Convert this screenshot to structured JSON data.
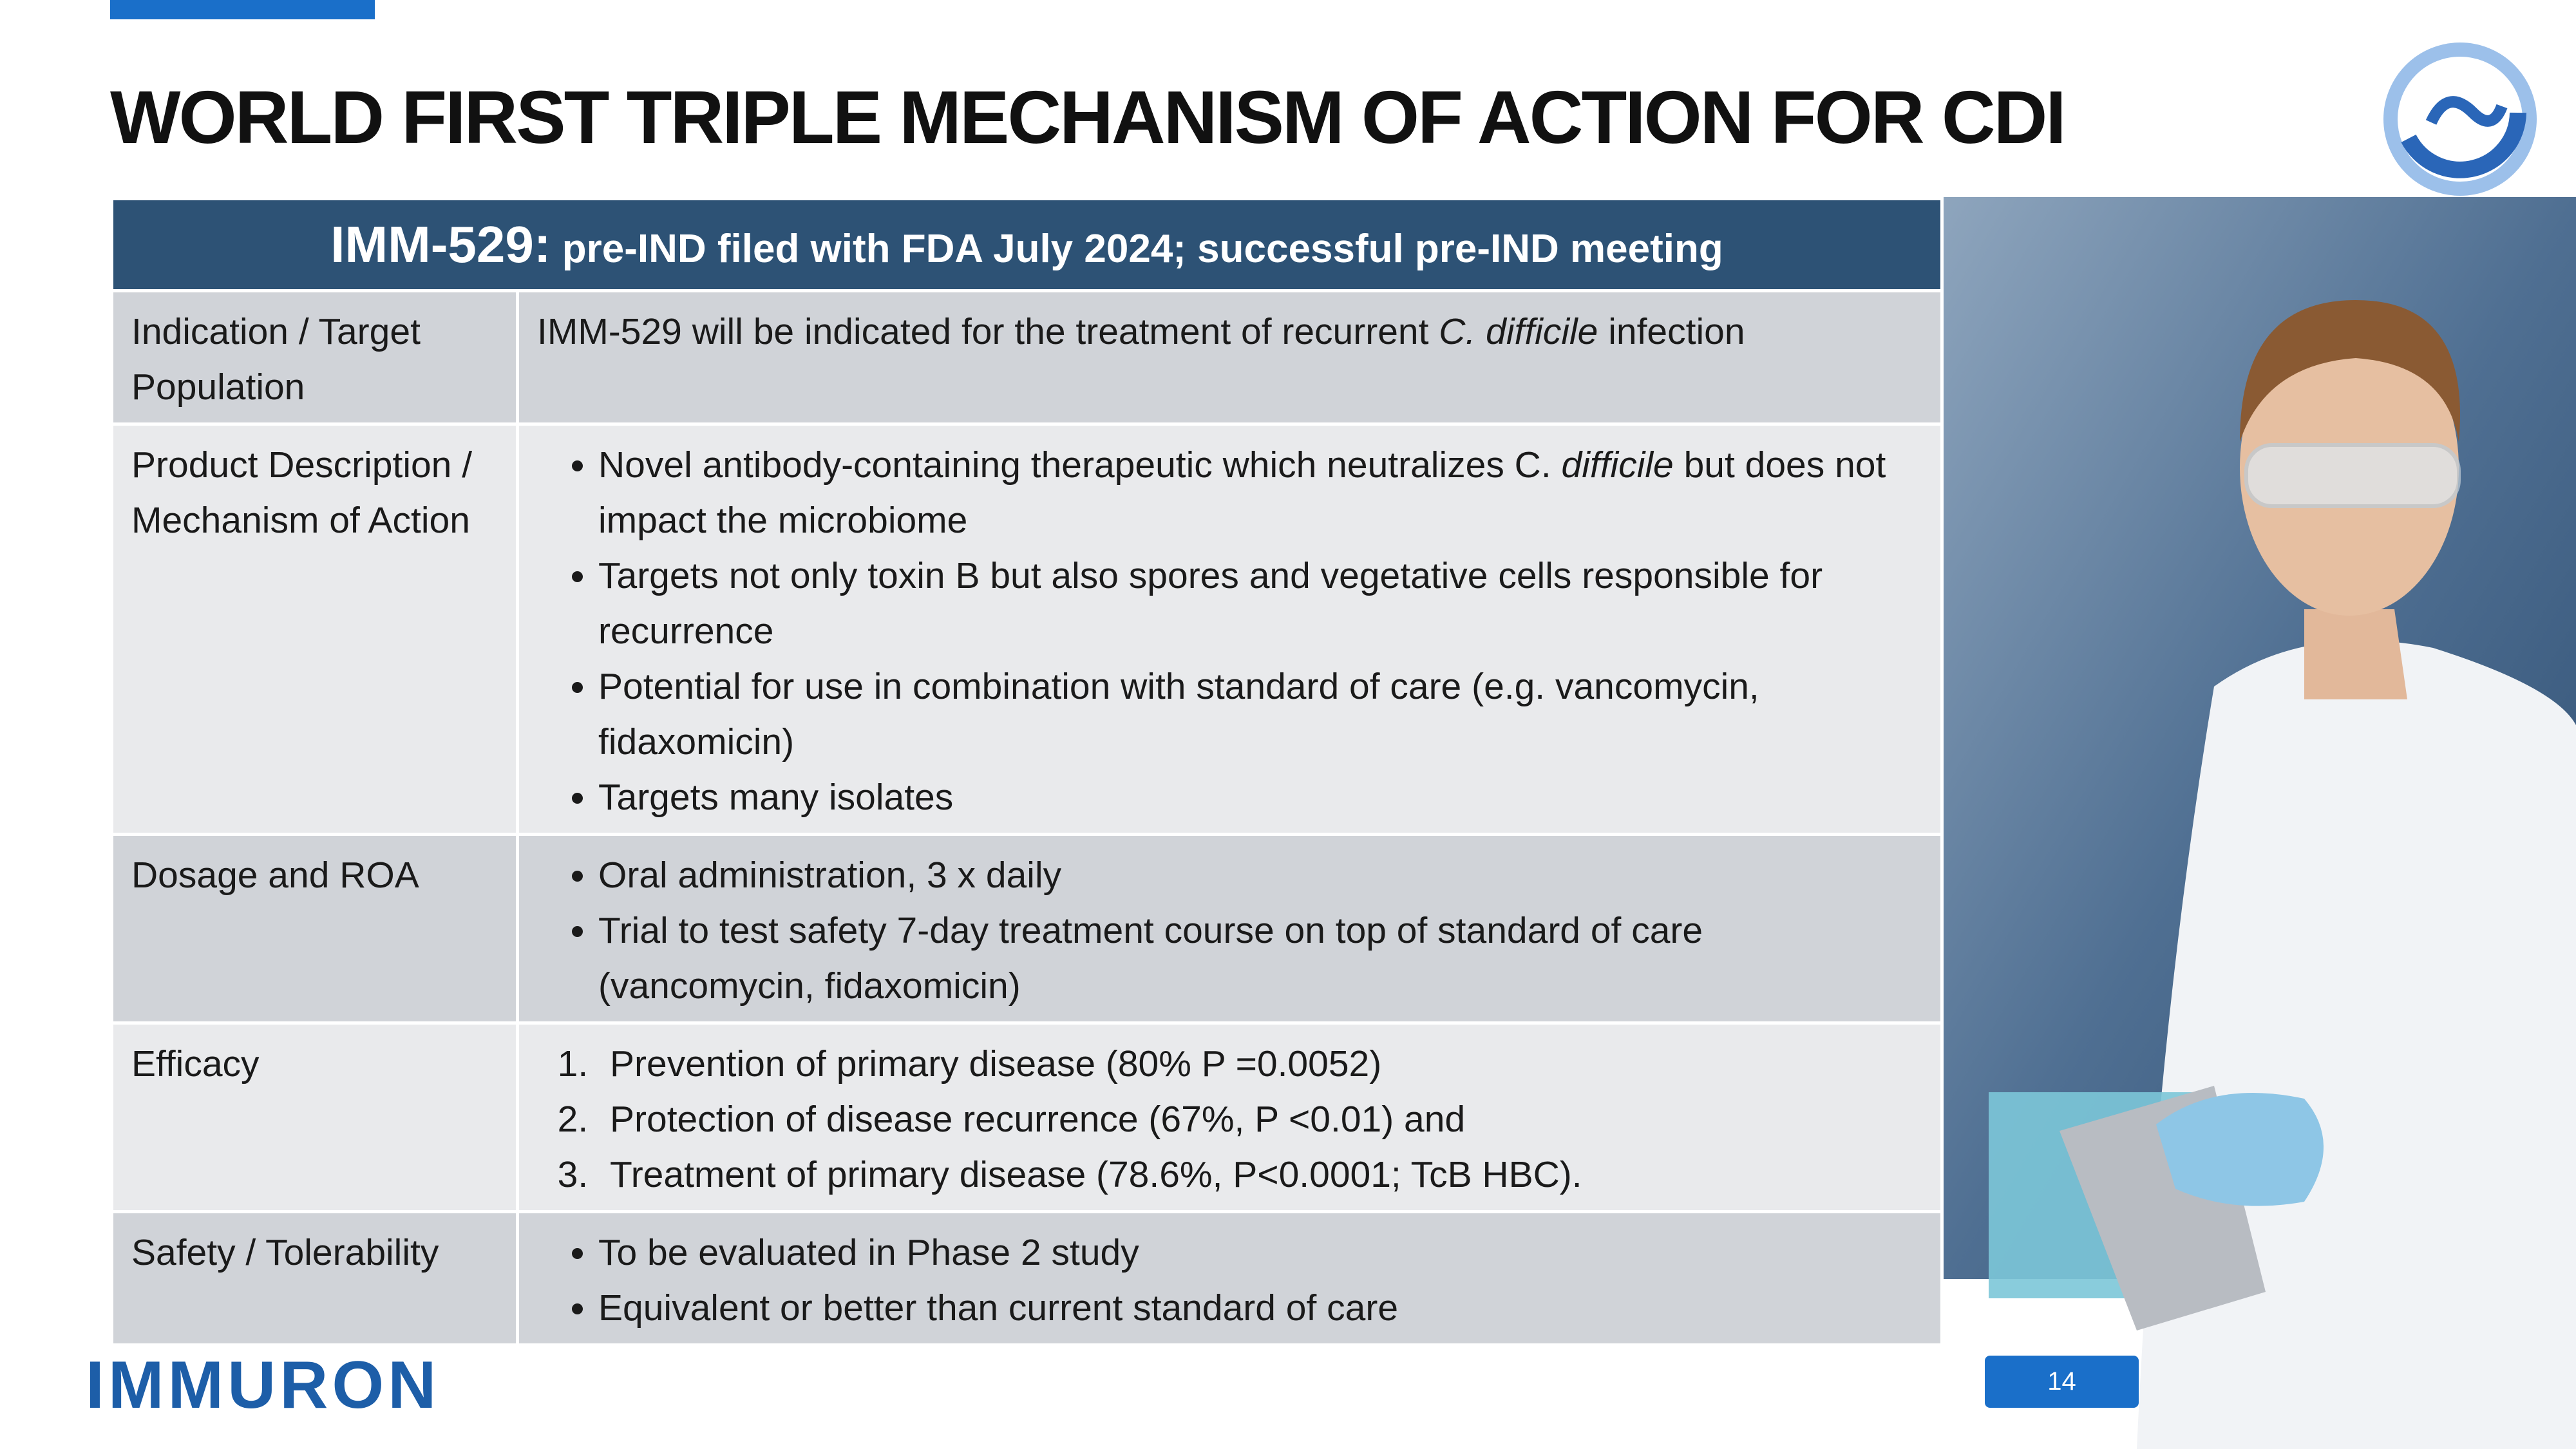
{
  "header": {
    "title": "WORLD FIRST TRIPLE MECHANISM OF ACTION FOR CDI"
  },
  "table": {
    "title_code": "IMM-529:",
    "title_text": "pre-IND filed with FDA July 2024; successful pre-IND meeting",
    "rows": [
      {
        "label": "Indication / Target Population",
        "paragraph": [
          "IMM-529 will be indicated for the treatment of recurrent ",
          "C. difficile",
          " infection"
        ]
      },
      {
        "label": "Product Description / Mechanism of Action",
        "list_style": "disc",
        "items": [
          [
            "Novel antibody-containing therapeutic which neutralizes C. ",
            "difficile",
            " but does not impact the microbiome"
          ],
          [
            "Targets not only toxin B but also spores and vegetative cells responsible for recurrence"
          ],
          [
            "Potential for use in combination with standard of care (e.g. vancomycin, fidaxomicin)"
          ],
          [
            "Targets many isolates"
          ]
        ]
      },
      {
        "label": "Dosage and ROA",
        "list_style": "disc",
        "items": [
          [
            "Oral administration, 3 x daily"
          ],
          [
            "Trial to test safety 7-day treatment course on top of standard of care (vancomycin, fidaxomicin)"
          ]
        ]
      },
      {
        "label": "Efficacy",
        "list_style": "decimal",
        "items": [
          [
            "Prevention of primary disease (80% P =0.0052)"
          ],
          [
            "Protection of disease recurrence (67%, P <0.01) and"
          ],
          [
            "Treatment of primary disease (78.6%, P<0.0001; TcB HBC)."
          ]
        ]
      },
      {
        "label": "Safety / Tolerability",
        "list_style": "disc",
        "items": [
          [
            "To be evaluated in Phase 2 study"
          ],
          [
            "Equivalent or better than current standard of care"
          ]
        ]
      }
    ]
  },
  "footer": {
    "logo": "IMMURON",
    "page_number": "14"
  }
}
